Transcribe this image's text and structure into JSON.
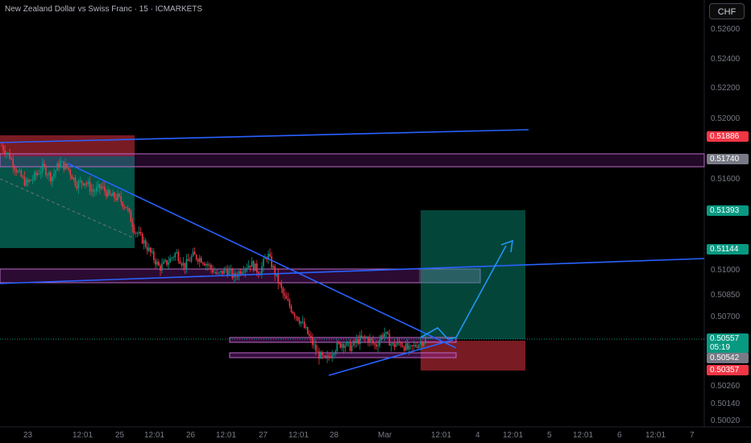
{
  "header": {
    "title": "New Zealand Dollar vs Swiss Franc · 15 · ICMARKETS",
    "currency_button": "CHF"
  },
  "colors": {
    "background": "#000000",
    "up": "#089981",
    "down": "#f23645",
    "trendline": "#2962ff",
    "zone_purple": "#9c27b0",
    "label_red": "#f23645",
    "label_green": "#089981",
    "label_gray": "#787b86"
  },
  "price_labels": [
    {
      "name": "resistance-label",
      "value": "0.51886",
      "color": "#f23645"
    },
    {
      "name": "zone-label",
      "value": "0.51740",
      "color": "#787b86"
    },
    {
      "name": "target-label",
      "value": "0.51393",
      "color": "#089981"
    },
    {
      "name": "trendline-label",
      "value": "0.51144",
      "color": "#089981"
    },
    {
      "name": "last-price-label",
      "value": "0.50557",
      "color": "#089981"
    },
    {
      "name": "entry-label",
      "value": "0.50542",
      "color": "#787b86"
    },
    {
      "name": "stop-label",
      "value": "0.50357",
      "color": "#f23645"
    }
  ],
  "countdown": "05:19",
  "chart_data": {
    "type": "candlestick",
    "title": "New Zealand Dollar vs Swiss Franc · 15 · ICMARKETS",
    "ylim": [
      0.5002,
      0.5268
    ],
    "y_ticks": [
      "0.52600",
      "0.52400",
      "0.52200",
      "0.52000",
      "0.51740",
      "0.51600",
      "0.51393",
      "0.51144",
      "0.51000",
      "0.50850",
      "0.50700",
      "0.50557",
      "0.50542",
      "0.50357",
      "0.50260",
      "0.50140",
      "0.50020"
    ],
    "x_ticks": [
      "23",
      "12:01",
      "25",
      "12:01",
      "26",
      "12:01",
      "27",
      "12:01",
      "28",
      "Mar",
      "12:01",
      "4",
      "12:01",
      "5",
      "12:01",
      "6",
      "12:01",
      "7"
    ],
    "price_path": [
      0.5183,
      0.5176,
      0.5165,
      0.5158,
      0.5163,
      0.5169,
      0.5162,
      0.5172,
      0.5168,
      0.5158,
      0.516,
      0.5153,
      0.5156,
      0.515,
      0.5149,
      0.5143,
      0.5128,
      0.5121,
      0.5112,
      0.5103,
      0.5107,
      0.5113,
      0.5104,
      0.5111,
      0.5109,
      0.5104,
      0.5098,
      0.5102,
      0.5097,
      0.5103,
      0.5106,
      0.51,
      0.5112,
      0.5098,
      0.5084,
      0.5075,
      0.5068,
      0.5058,
      0.5047,
      0.5042,
      0.505,
      0.5054,
      0.5051,
      0.5056,
      0.5057,
      0.5052,
      0.5061,
      0.5052,
      0.5054,
      0.5049,
      0.5053,
      0.5056
    ],
    "last_price": 0.50557,
    "annotations": {
      "resistance_level": 0.51886,
      "supply_zone": [
        0.5168,
        0.5176
      ],
      "demand_zone_mid": [
        0.5096,
        0.5104
      ],
      "long_position": {
        "entry": 0.50542,
        "target": 0.51393,
        "stop": 0.50357
      },
      "trendline_level": 0.51144
    }
  }
}
